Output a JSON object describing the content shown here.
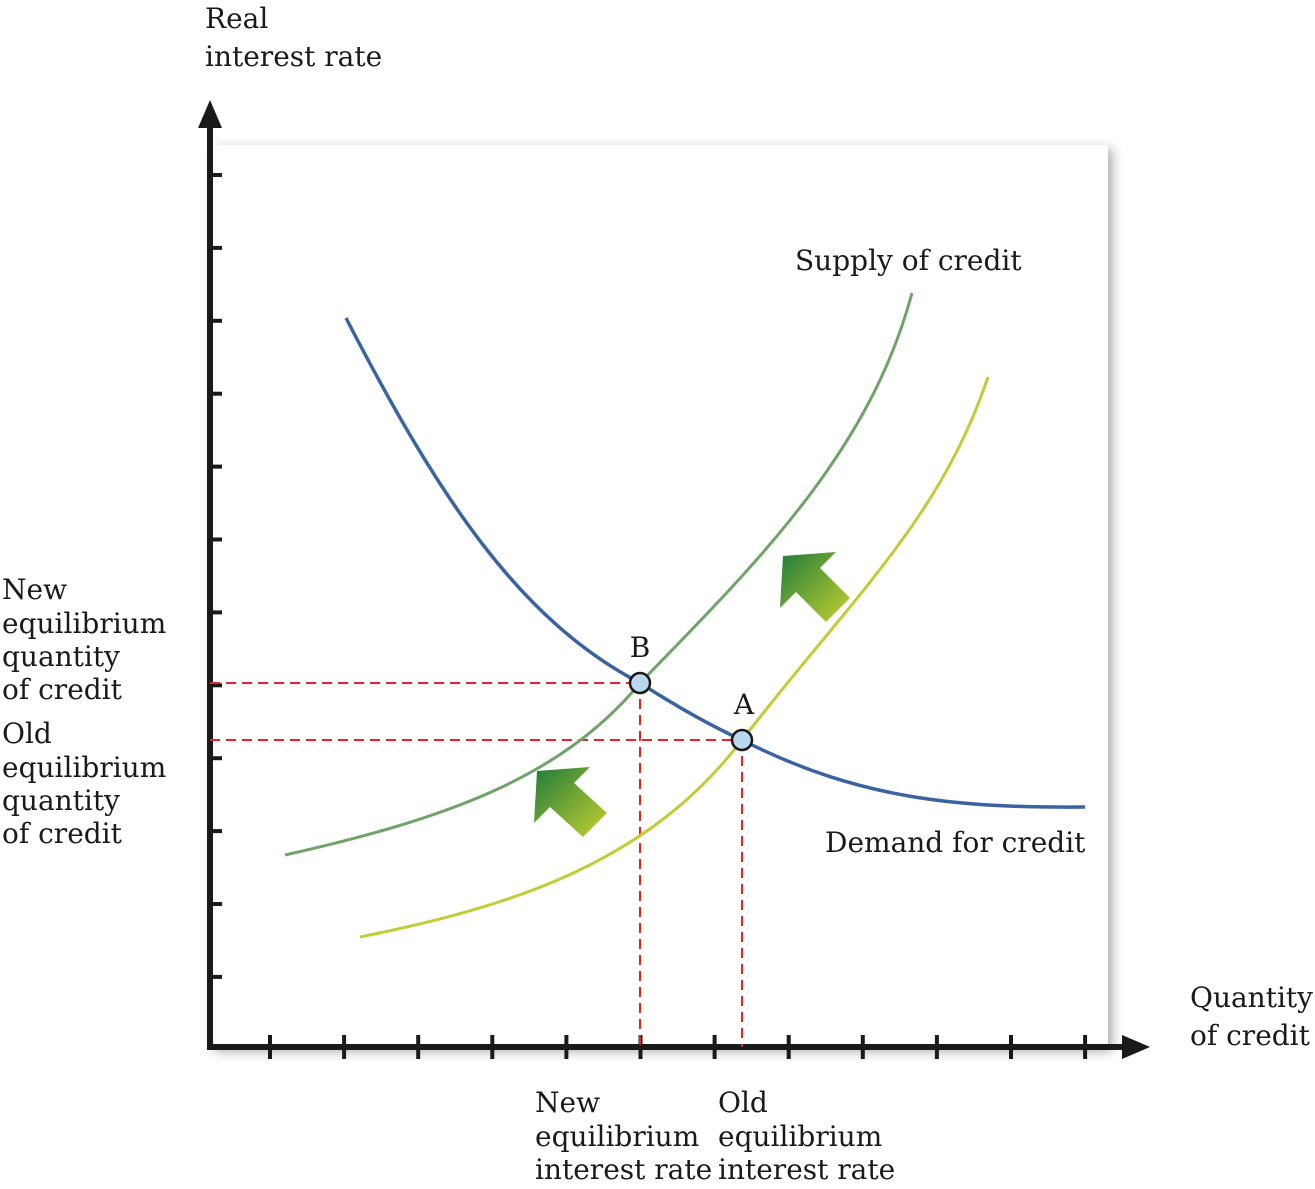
{
  "axes": {
    "y_label": [
      "Real",
      "interest rate"
    ],
    "x_label": [
      "Quantity",
      "of credit"
    ]
  },
  "curves": {
    "supply_label": "Supply of credit",
    "demand_label": "Demand for credit"
  },
  "points": {
    "b_label": "B",
    "a_label": "A"
  },
  "left_labels": {
    "new_quantity": [
      "New",
      "equilibrium",
      "quantity",
      "of credit"
    ],
    "old_quantity": [
      "Old",
      "equilibrium",
      "quantity",
      "of credit"
    ]
  },
  "bottom_labels": {
    "new_rate": [
      "New",
      "equilibrium",
      "interest rate"
    ],
    "old_rate": [
      "Old",
      "equilibrium",
      "interest rate"
    ]
  },
  "colors": {
    "demand": "#3a63a0",
    "old_supply": "#c2cc36",
    "new_supply": "#6fa36a",
    "guide": "#e0262b",
    "point_fill": "#b9d7ee",
    "arrow_dark": "#1f7a3c",
    "arrow_light": "#c6d22f"
  }
}
